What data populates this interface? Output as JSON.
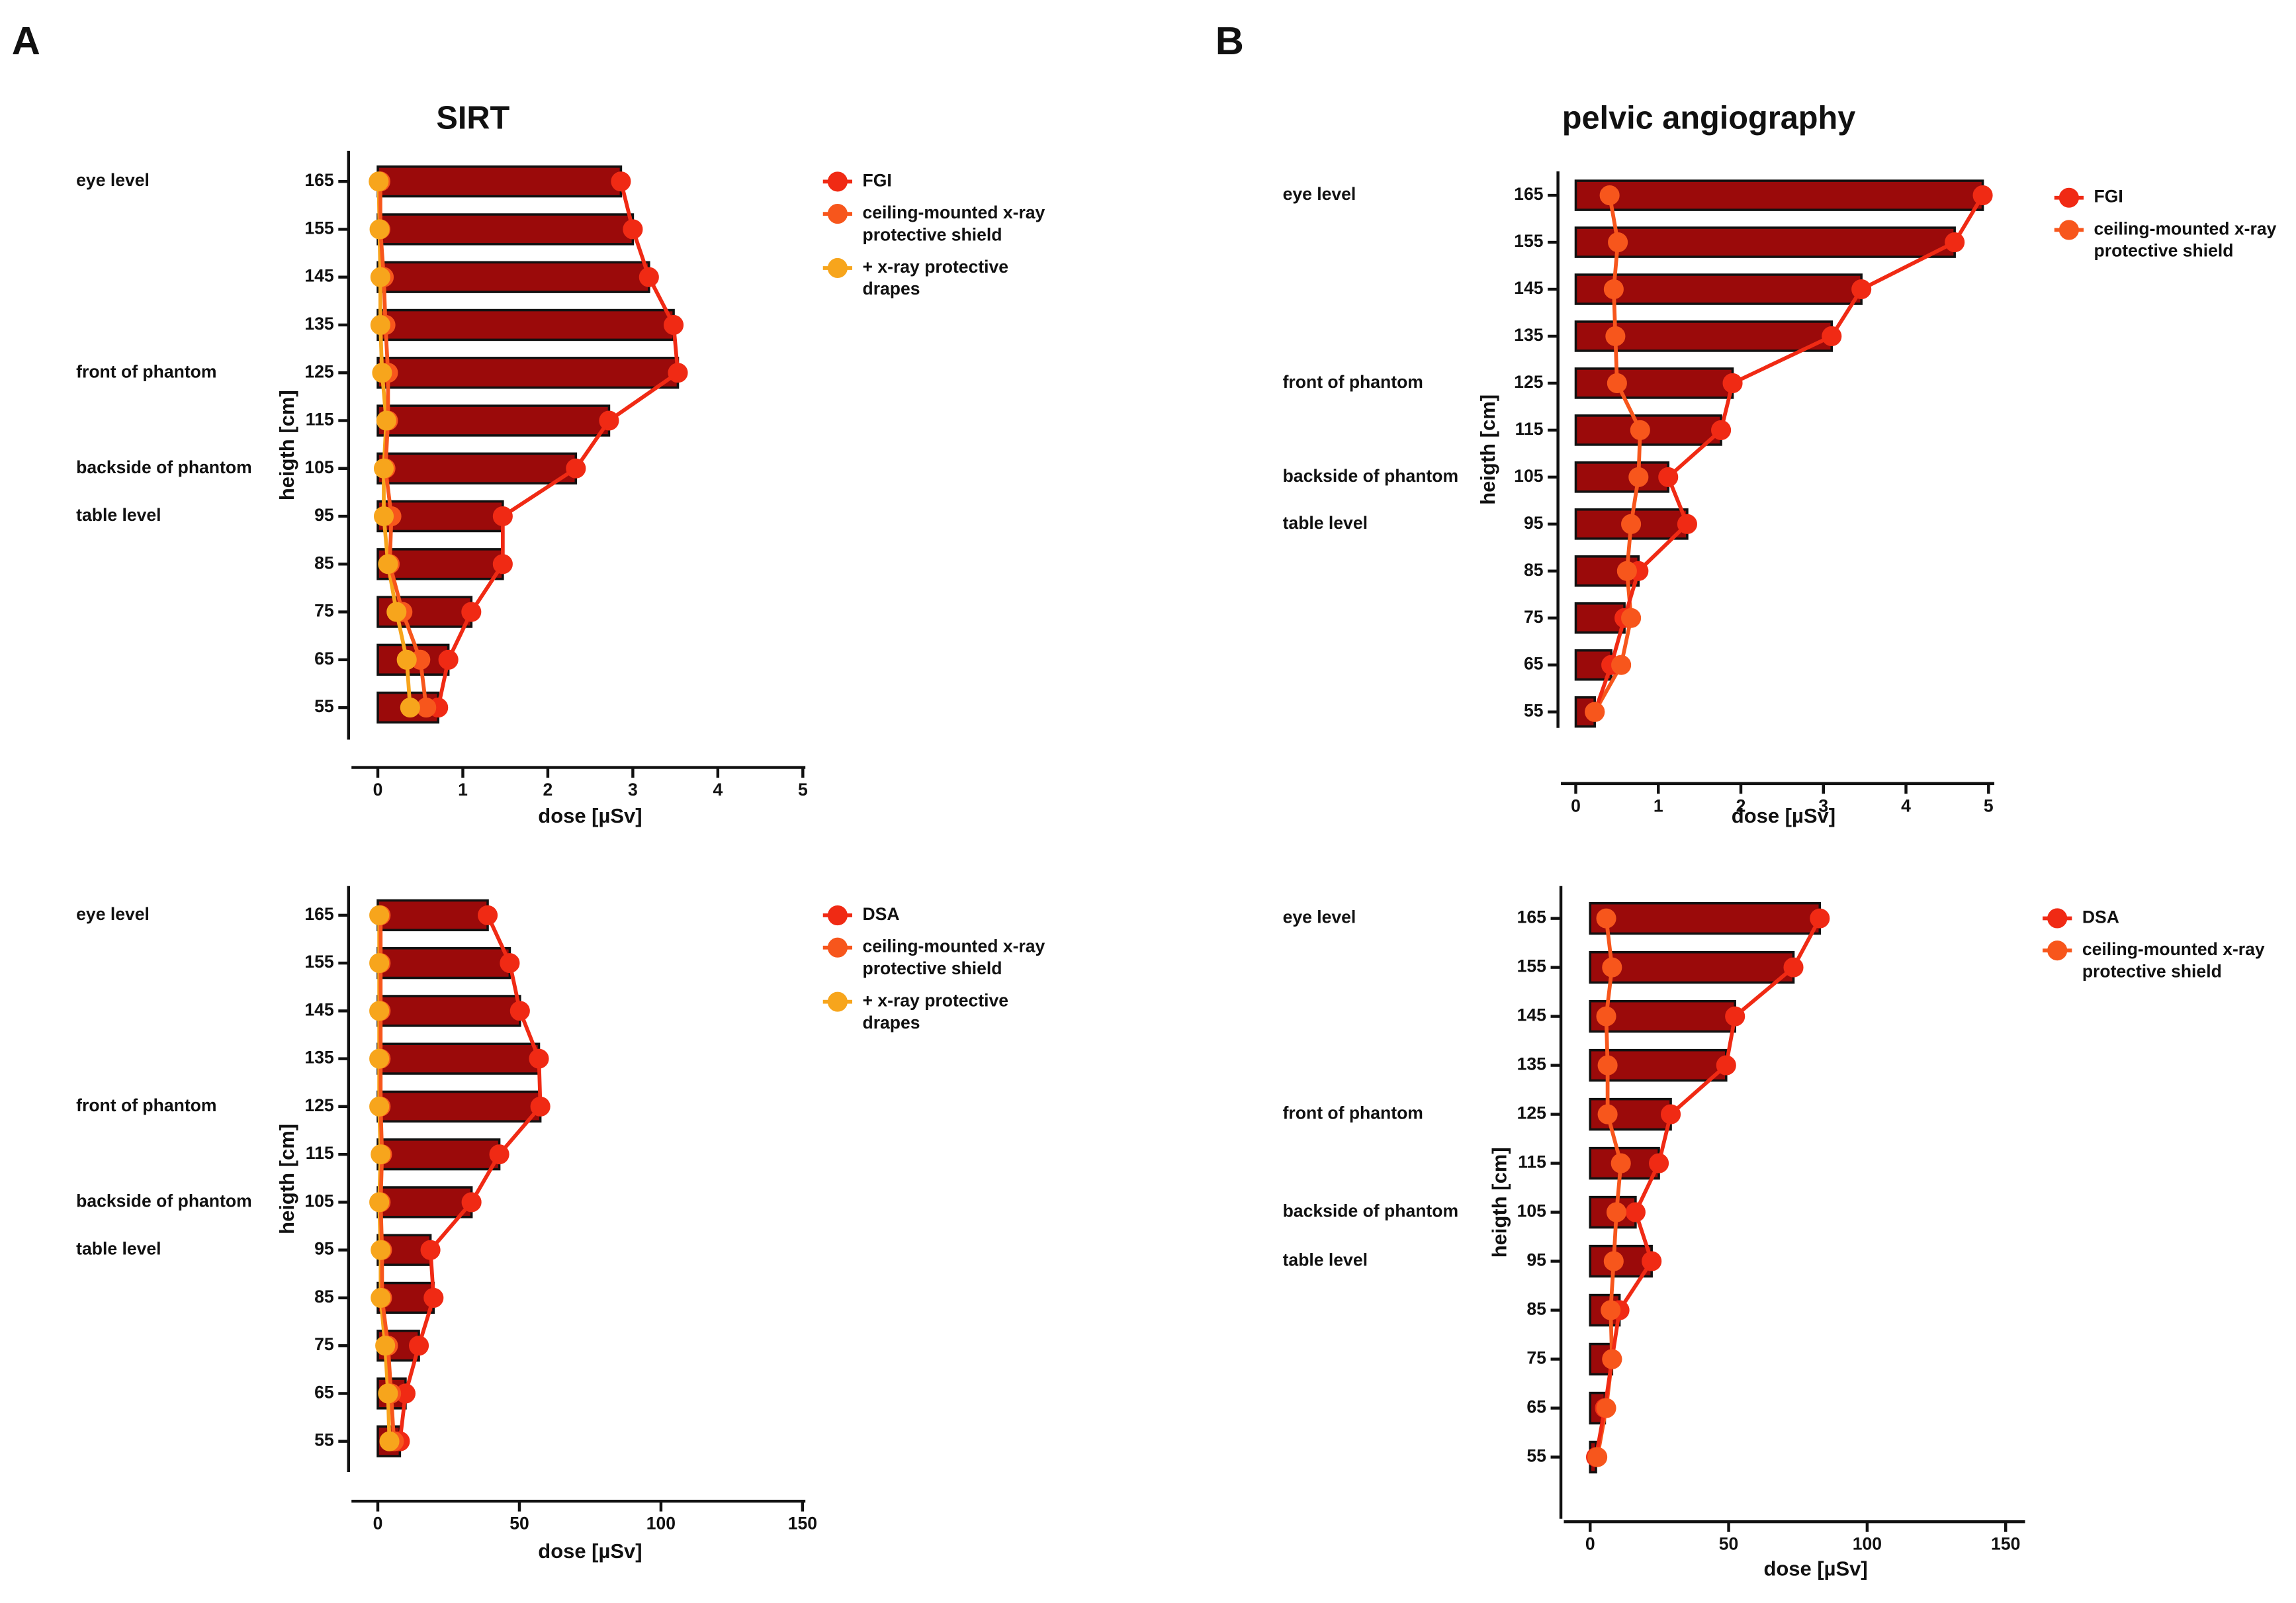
{
  "panels": [
    "A",
    "B"
  ],
  "chart_data": [
    {
      "type": "hbar-line",
      "title": "SIRT",
      "ylabel": "heigth [cm]",
      "xlabel": "dose [µSv]",
      "y": [
        165,
        155,
        145,
        135,
        125,
        115,
        105,
        95,
        85,
        75,
        65,
        55
      ],
      "xlim": [
        -0.31,
        5.03
      ],
      "xticks": [
        0,
        1,
        2,
        3,
        4,
        5
      ],
      "ylim": [
        48.3,
        171.4
      ],
      "yticks": [
        165,
        155,
        145,
        135,
        125,
        115,
        105,
        95,
        85,
        75,
        65,
        55
      ],
      "bar_color": "#9b0a0a",
      "annotations": [
        {
          "text": "eye level",
          "y": 165
        },
        {
          "text": "front of phantom",
          "y": 125
        },
        {
          "text": "backside of phantom",
          "y": 105
        },
        {
          "text": "table level",
          "y": 95
        }
      ],
      "series": [
        {
          "name": "FGI",
          "color": "#f02a14",
          "bar": true,
          "values": [
            2.86,
            3.0,
            3.19,
            3.48,
            3.53,
            2.72,
            2.33,
            1.47,
            1.47,
            1.1,
            0.83,
            0.71
          ]
        },
        {
          "name": "ceiling-mounted x-ray protective shield",
          "color": "#f7561c",
          "bar": false,
          "values": [
            0.03,
            0.03,
            0.07,
            0.09,
            0.12,
            0.12,
            0.09,
            0.16,
            0.14,
            0.29,
            0.5,
            0.57
          ]
        },
        {
          "name": "+ x-ray protective drapes",
          "color": "#f7a51c",
          "bar": false,
          "values": [
            0.01,
            0.02,
            0.03,
            0.03,
            0.05,
            0.1,
            0.07,
            0.07,
            0.12,
            0.22,
            0.34,
            0.38
          ]
        }
      ]
    },
    {
      "type": "hbar-line",
      "ylabel": "heigth [cm]",
      "xlabel": "dose [µSv]",
      "y": [
        165,
        155,
        145,
        135,
        125,
        115,
        105,
        95,
        85,
        75,
        65,
        55
      ],
      "xlim": [
        -9.3,
        151
      ],
      "xticks": [
        0,
        50,
        100,
        150
      ],
      "ylim": [
        48.6,
        171.1
      ],
      "yticks": [
        165,
        155,
        145,
        135,
        125,
        115,
        105,
        95,
        85,
        75,
        65,
        55
      ],
      "bar_color": "#9b0a0a",
      "annotations": [
        {
          "text": "eye level",
          "y": 165
        },
        {
          "text": "front of phantom",
          "y": 125
        },
        {
          "text": "backside of phantom",
          "y": 105
        },
        {
          "text": "table level",
          "y": 95
        }
      ],
      "series": [
        {
          "name": "DSA",
          "color": "#f02a14",
          "bar": true,
          "values": [
            38.8,
            46.6,
            50.2,
            56.9,
            57.4,
            42.9,
            33.1,
            18.6,
            19.7,
            14.5,
            9.8,
            7.8
          ]
        },
        {
          "name": "ceiling-mounted x-ray protective shield",
          "color": "#f7561c",
          "bar": false,
          "values": [
            1,
            1,
            1,
            1,
            1,
            1.5,
            1,
            1.5,
            1.5,
            3.6,
            4.7,
            5.7
          ]
        },
        {
          "name": "+ x-ray protective drapes",
          "color": "#f7a51c",
          "bar": false,
          "values": [
            0.5,
            0.5,
            0.5,
            0.5,
            0.5,
            1,
            0.5,
            1,
            1,
            2.6,
            3.6,
            4.1
          ]
        }
      ]
    },
    {
      "type": "hbar-line",
      "title": "pelvic angiography",
      "ylabel": "heigth [cm]",
      "xlabel": "dose [µSv]",
      "y": [
        165,
        155,
        145,
        135,
        125,
        115,
        105,
        95,
        85,
        75,
        65,
        55
      ],
      "xlim": [
        -0.18,
        5.07
      ],
      "xticks": [
        0,
        1,
        2,
        3,
        4,
        5
      ],
      "ylim": [
        51.6,
        170.1
      ],
      "yticks": [
        165,
        155,
        145,
        135,
        125,
        115,
        105,
        95,
        85,
        75,
        65,
        55
      ],
      "bar_color": "#9b0a0a",
      "annotations": [
        {
          "text": "eye level",
          "y": 165
        },
        {
          "text": "front of phantom",
          "y": 125
        },
        {
          "text": "backside of phantom",
          "y": 105
        },
        {
          "text": "table level",
          "y": 95
        }
      ],
      "series": [
        {
          "name": "FGI",
          "color": "#f02a14",
          "bar": true,
          "values": [
            4.93,
            4.59,
            3.46,
            3.1,
            1.9,
            1.76,
            1.12,
            1.35,
            0.76,
            0.59,
            0.43,
            0.23
          ]
        },
        {
          "name": "ceiling-mounted x-ray protective shield",
          "color": "#f7561c",
          "bar": false,
          "values": [
            0.41,
            0.51,
            0.46,
            0.48,
            0.5,
            0.78,
            0.76,
            0.67,
            0.62,
            0.67,
            0.55,
            0.23
          ]
        }
      ]
    },
    {
      "type": "hbar-line",
      "ylabel": "heigth [cm]",
      "xlabel": "dose [µSv]",
      "y": [
        165,
        155,
        145,
        135,
        125,
        115,
        105,
        95,
        85,
        75,
        65,
        55
      ],
      "xlim": [
        -9.5,
        157
      ],
      "xticks": [
        0,
        50,
        100,
        150
      ],
      "ylim": [
        42.4,
        171.6
      ],
      "yticks": [
        165,
        155,
        145,
        135,
        125,
        115,
        105,
        95,
        85,
        75,
        65,
        55
      ],
      "bar_color": "#9b0a0a",
      "annotations": [
        {
          "text": "eye level",
          "y": 165
        },
        {
          "text": "front of phantom",
          "y": 125
        },
        {
          "text": "backside of phantom",
          "y": 105
        },
        {
          "text": "table level",
          "y": 95
        }
      ],
      "series": [
        {
          "name": "DSA",
          "color": "#f02a14",
          "bar": true,
          "values": [
            82.9,
            73.4,
            52.3,
            49.1,
            29.1,
            24.8,
            16.4,
            22.2,
            10.6,
            7.9,
            5.3,
            2.1
          ]
        },
        {
          "name": "ceiling-mounted x-ray protective shield",
          "color": "#f7561c",
          "bar": false,
          "values": [
            5.8,
            7.9,
            5.8,
            6.3,
            6.3,
            11.1,
            9.5,
            8.5,
            7.4,
            7.9,
            5.8,
            2.6
          ]
        }
      ]
    }
  ]
}
